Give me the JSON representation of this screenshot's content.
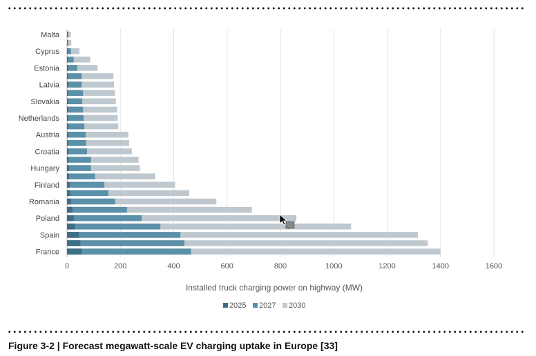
{
  "chart_data": {
    "type": "bar",
    "orientation": "horizontal",
    "stacked": false,
    "overlapping": true,
    "categories": [
      "Malta",
      "",
      "Cyprus",
      "",
      "Estonia",
      "",
      "Latvia",
      "",
      "Slovakia",
      "",
      "Netherlands",
      "",
      "Austria",
      "",
      "Croatia",
      "",
      "Hungary",
      "",
      "Finland",
      "",
      "Romania",
      "",
      "Poland",
      "",
      "Spain",
      "",
      "France"
    ],
    "series": [
      {
        "name": "2025",
        "color": "#3d6e84",
        "values": [
          2,
          2,
          3,
          3,
          5,
          4,
          5,
          4,
          5,
          5,
          5,
          5,
          5,
          5,
          6,
          6,
          8,
          7,
          10,
          12,
          15,
          20,
          25,
          30,
          45,
          50,
          55
        ]
      },
      {
        "name": "2027",
        "color": "#5a90a8",
        "values": [
          5,
          4,
          15,
          25,
          38,
          55,
          55,
          60,
          57,
          60,
          62,
          65,
          70,
          72,
          75,
          90,
          90,
          105,
          140,
          155,
          180,
          225,
          280,
          350,
          425,
          440,
          465
        ]
      },
      {
        "name": "2030",
        "color": "#bfc8ce",
        "values": [
          14,
          16,
          47,
          87,
          115,
          174,
          176,
          180,
          183,
          188,
          190,
          192,
          230,
          233,
          243,
          268,
          273,
          330,
          405,
          458,
          560,
          693,
          860,
          1065,
          1315,
          1352,
          1400
        ]
      }
    ],
    "xlabel": "Installed truck charging power on highway (MW)",
    "ylabel": "",
    "xlim": [
      0,
      1600
    ],
    "xticks": [
      0,
      200,
      400,
      600,
      800,
      1000,
      1200,
      1400,
      1600
    ],
    "grid": true,
    "legend": "bottom-center"
  },
  "caption": "Figure 3-2 | Forecast megawatt-scale EV charging uptake in Europe [33]"
}
